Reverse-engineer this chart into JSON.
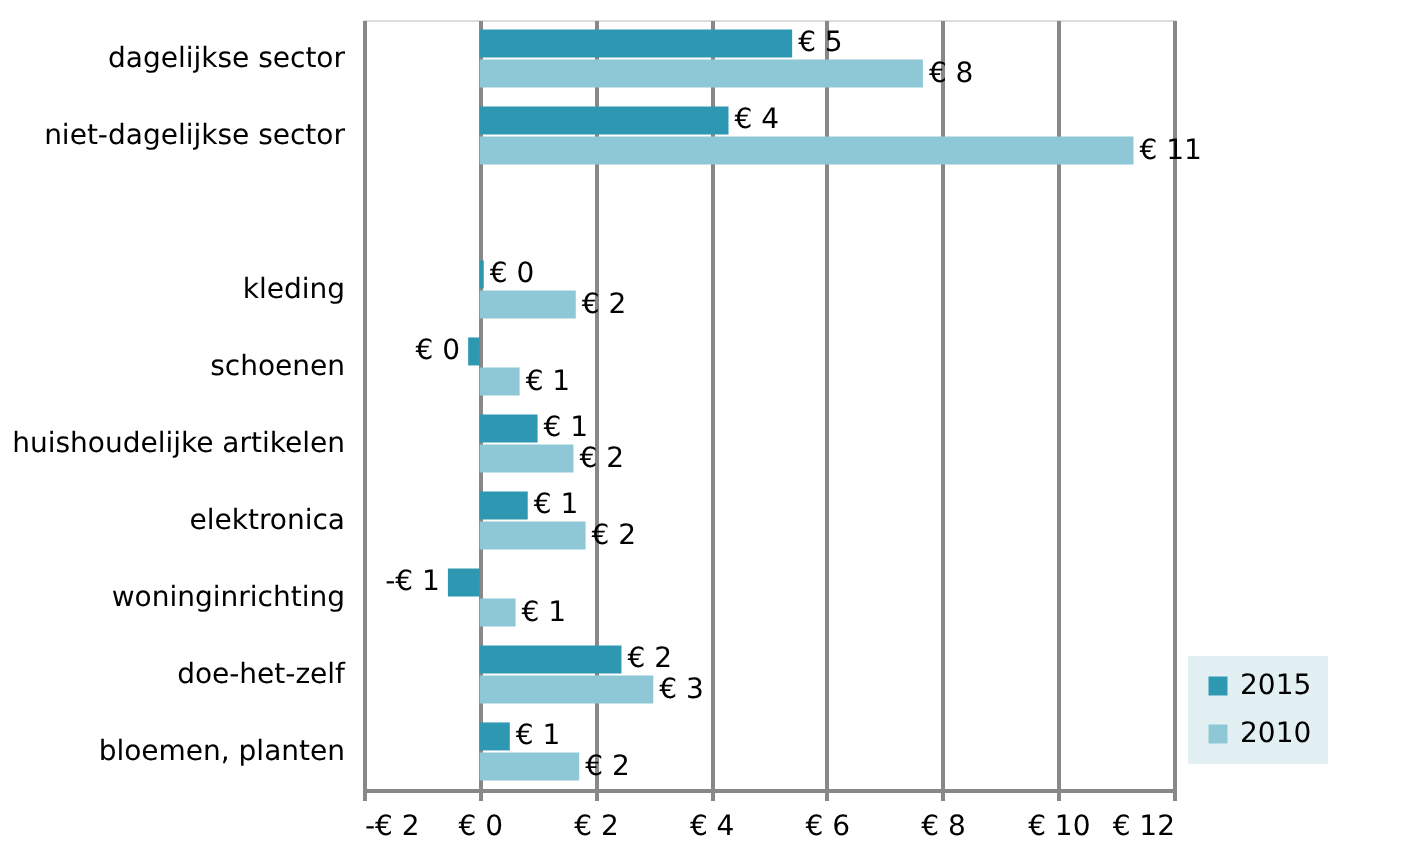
{
  "chart_data": {
    "type": "bar",
    "orientation": "horizontal",
    "categories": [
      "dagelijkse sector",
      "niet-dagelijkse sector",
      null,
      "kleding",
      "schoenen",
      "huishoudelijke artikelen",
      "elektronica",
      "woninginrichting",
      "doe-het-zelf",
      "bloemen, planten"
    ],
    "series": [
      {
        "name": "2015",
        "color": "#2e98b3",
        "values": [
          5.4,
          4.3,
          null,
          0.07,
          -0.2,
          1.0,
          0.83,
          -0.55,
          2.45,
          0.52
        ],
        "value_labels": [
          "€ 5",
          "€ 4",
          null,
          "€ 0",
          "€ 0",
          "€ 1",
          "€ 1",
          "-€ 1",
          "€ 2",
          "€ 1"
        ]
      },
      {
        "name": "2010",
        "color": "#8ec8d6",
        "values": [
          7.66,
          11.3,
          null,
          1.66,
          0.69,
          1.62,
          1.83,
          0.62,
          3.0,
          1.72
        ],
        "value_labels": [
          "€ 8",
          "€ 11",
          null,
          "€ 2",
          "€ 1",
          "€ 2",
          "€ 2",
          "€ 1",
          "€ 3",
          "€ 2"
        ]
      }
    ],
    "xlim": [
      -2,
      12
    ],
    "xticks": [
      {
        "value": -2,
        "label": "-€ 2"
      },
      {
        "value": 0,
        "label": "€ 0"
      },
      {
        "value": 2,
        "label": "€ 2"
      },
      {
        "value": 4,
        "label": "€ 4"
      },
      {
        "value": 6,
        "label": "€ 6"
      },
      {
        "value": 8,
        "label": "€ 8"
      },
      {
        "value": 10,
        "label": "€ 10"
      },
      {
        "value": 12,
        "label": "€ 12"
      }
    ],
    "grid": "x",
    "legend": "bottom right"
  }
}
